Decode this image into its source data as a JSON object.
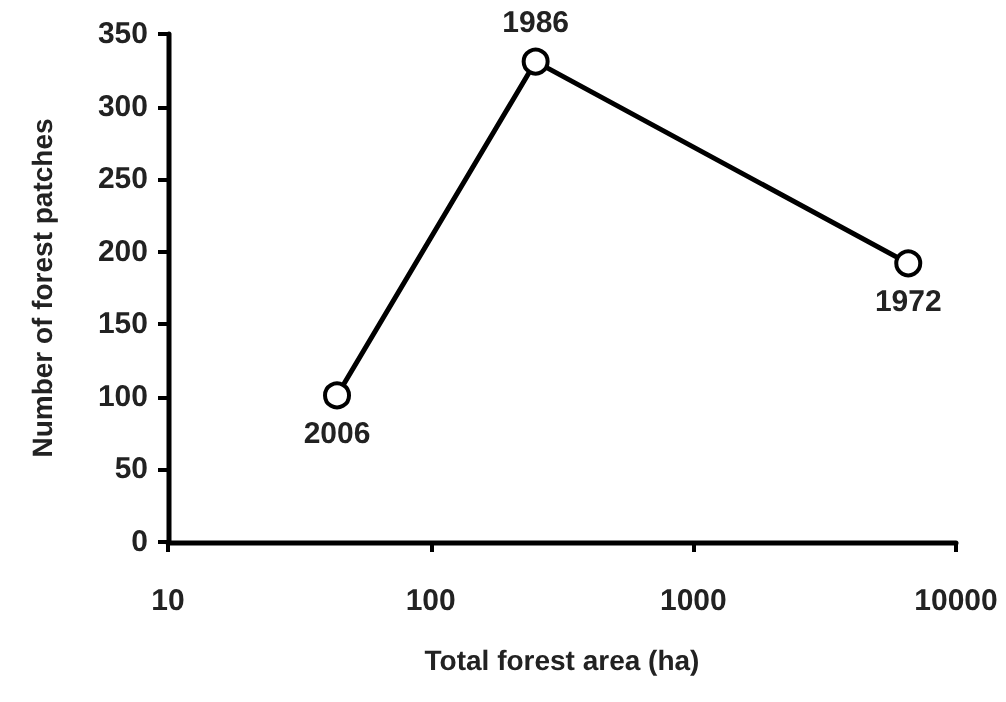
{
  "chart_data": {
    "type": "line",
    "xlabel": "Total forest area (ha)",
    "ylabel": "Number of forest patches",
    "x": [
      44,
      251,
      6580
    ],
    "series": [
      {
        "color": "#000000",
        "values": [
          101,
          331,
          192
        ]
      }
    ],
    "annotations": [
      {
        "text": "2006",
        "x": 44,
        "y": 101
      },
      {
        "text": "1986",
        "x": 251,
        "y": 331
      },
      {
        "text": "1972",
        "x": 6580,
        "y": 192
      }
    ],
    "log": "x",
    "xlim": [
      10,
      10000
    ],
    "xticks": [
      10,
      100,
      1000,
      10000
    ],
    "ylim": [
      0,
      350
    ],
    "yticks": [
      0,
      50,
      100,
      150,
      200,
      250,
      300,
      350
    ],
    "marker": "circle",
    "line_style": "solid"
  }
}
